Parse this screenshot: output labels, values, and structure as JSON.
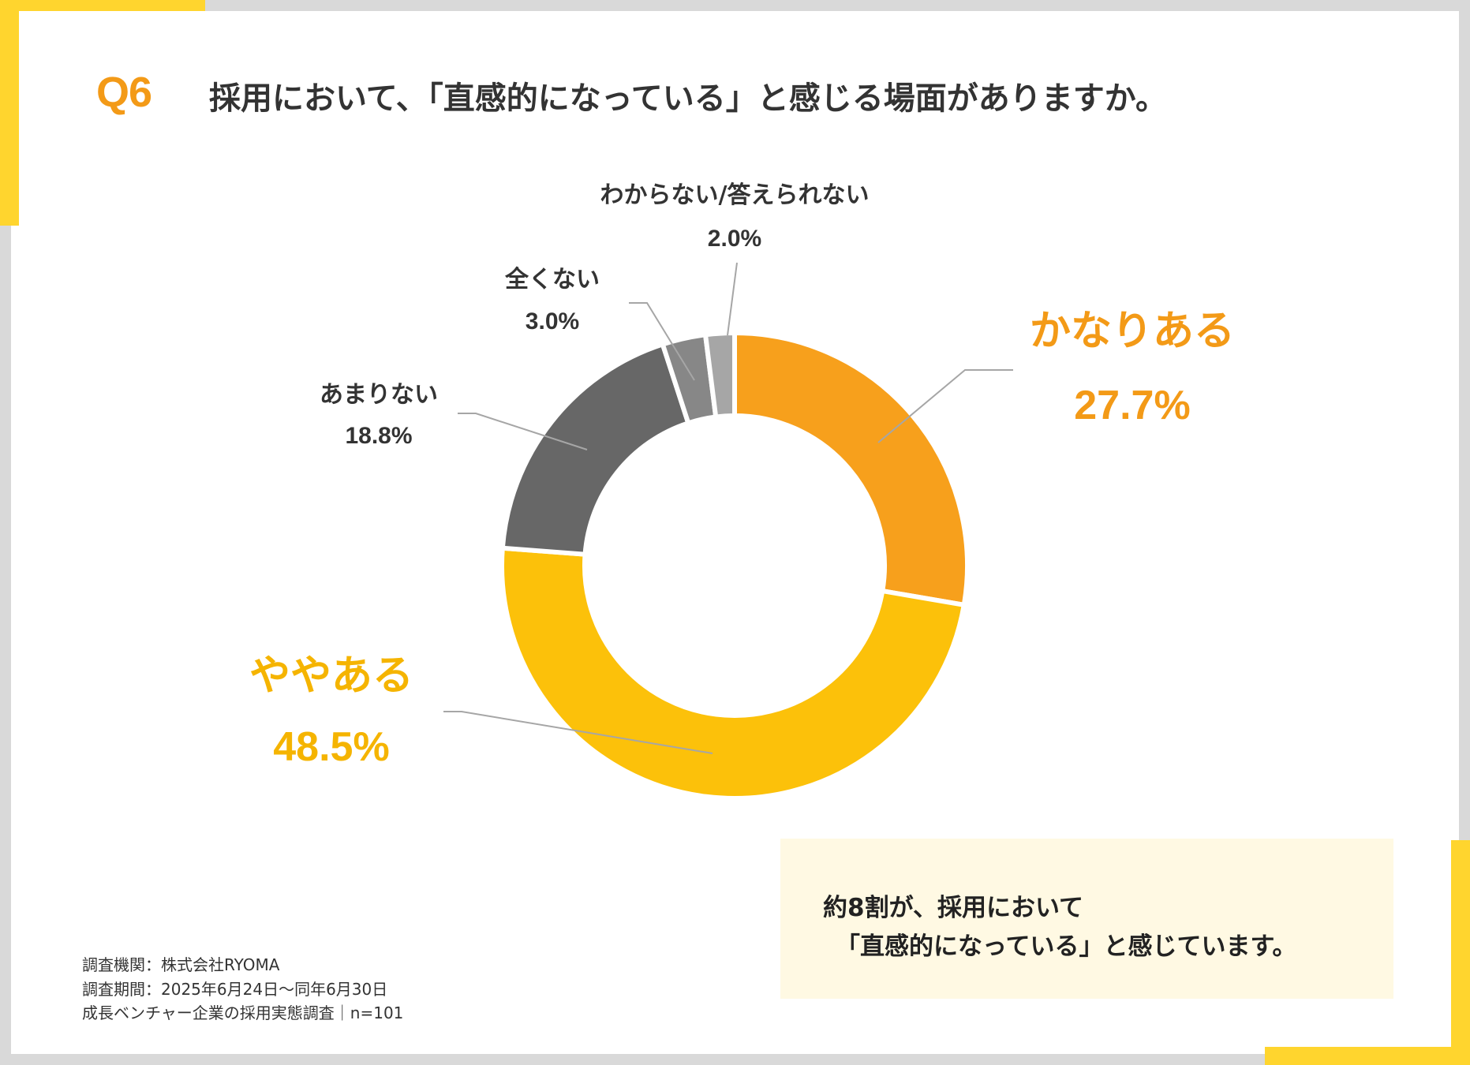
{
  "header": {
    "question_number": "Q6",
    "question_text": "採用において、「直感的になっている」と感じる場面がありますか。"
  },
  "chart_data": {
    "type": "pie",
    "subtype": "donut",
    "title": "採用において、「直感的になっている」と感じる場面がありますか。",
    "categories": [
      "かなりある",
      "ややある",
      "あまりない",
      "全くない",
      "わからない/答えられない"
    ],
    "values": [
      27.7,
      48.5,
      18.8,
      3.0,
      2.0
    ],
    "value_labels": [
      "27.7%",
      "48.5%",
      "18.8%",
      "3.0%",
      "2.0%"
    ],
    "colors": [
      "#f7a01c",
      "#fcc10a",
      "#676767",
      "#878787",
      "#a6a6a6"
    ],
    "label_colors": [
      "#f39a17",
      "#f5b400",
      "#333333",
      "#333333",
      "#333333"
    ],
    "start": "12 o'clock, clockwise"
  },
  "summary": {
    "line1": "約8割が、採用において",
    "line2": "「直感的になっている」と感じています。"
  },
  "source": {
    "line1": "調査機関：株式会社RYOMA",
    "line2": "調査期間：2025年6月24日～同年6月30日",
    "line3": "成長ベンチャー企業の採用実態調査｜n=101"
  }
}
